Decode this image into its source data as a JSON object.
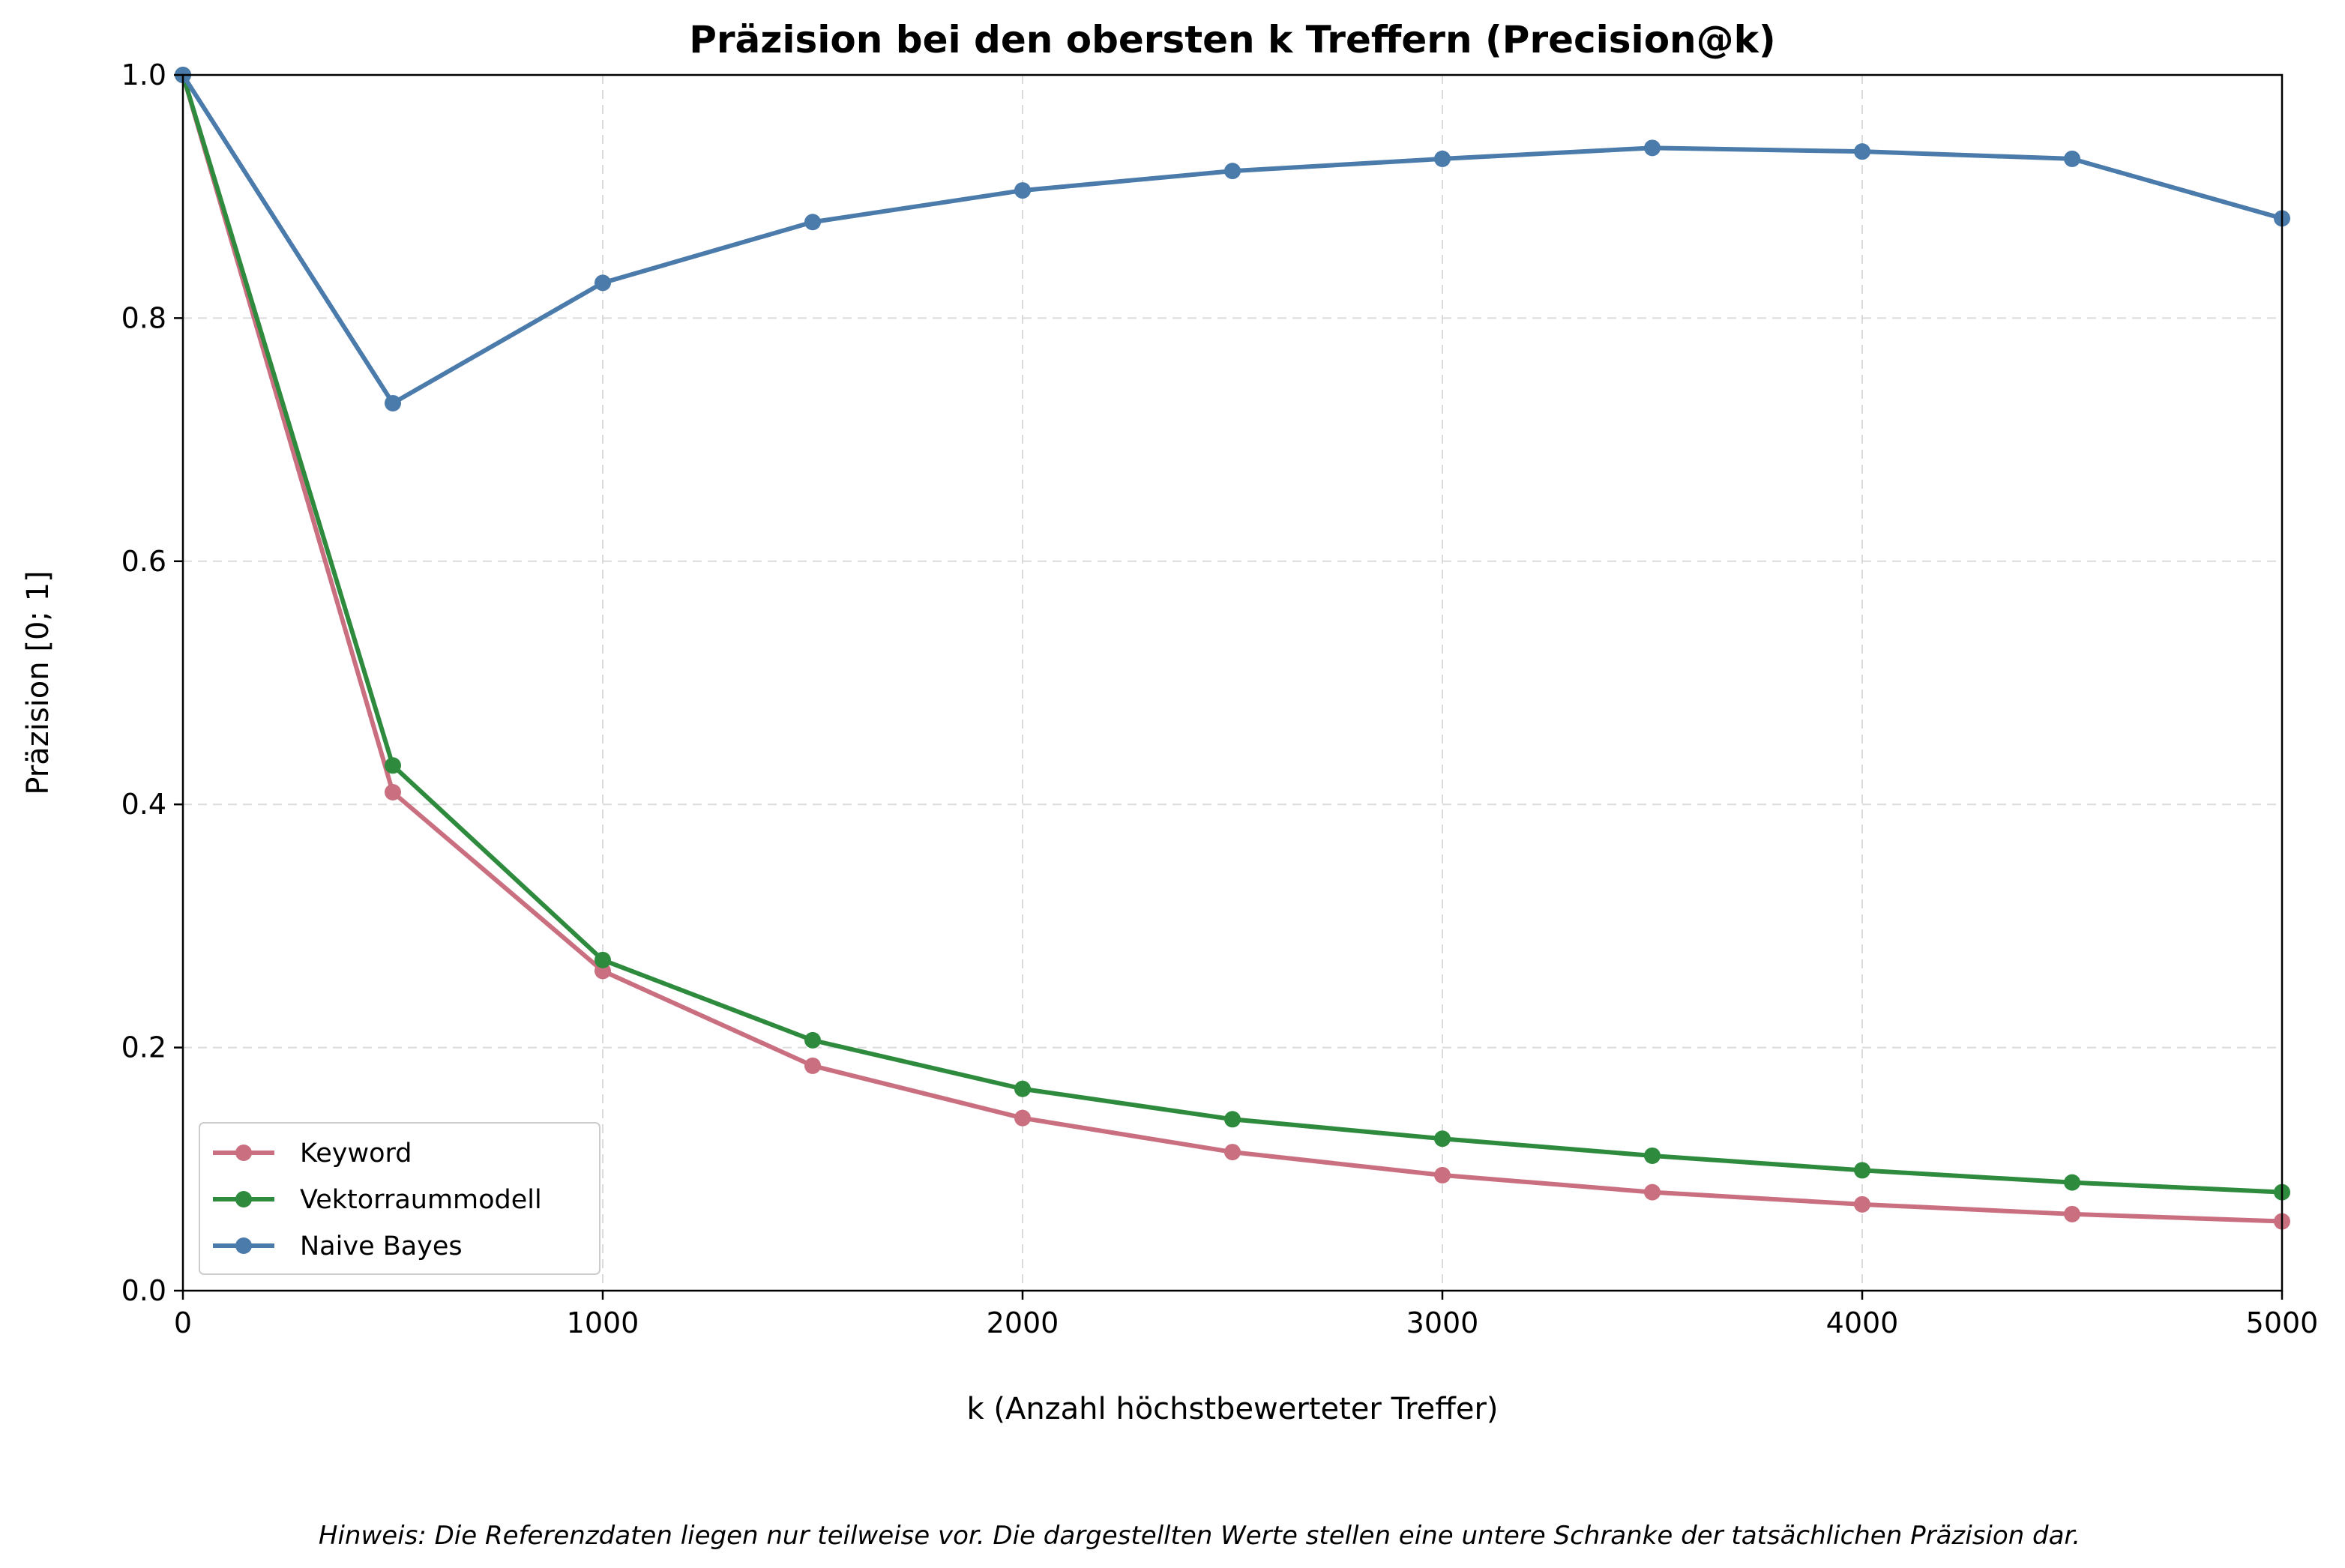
{
  "chart_data": {
    "type": "line",
    "title": "Präzision bei den obersten k Treffern (Precision@k)",
    "xlabel": "k (Anzahl höchstbewerteter Treffer)",
    "ylabel": "Präzision [0; 1]",
    "xlim": [
      0,
      5000
    ],
    "ylim": [
      0,
      1
    ],
    "xticks": [
      0,
      1000,
      2000,
      3000,
      4000,
      5000
    ],
    "xtick_labels": [
      "0",
      "1000",
      "2000",
      "3000",
      "4000",
      "5000"
    ],
    "yticks": [
      0,
      0.2,
      0.4,
      0.6,
      0.8,
      1.0
    ],
    "ytick_labels": [
      "0.0",
      "0.2",
      "0.4",
      "0.6",
      "0.8",
      "1.0"
    ],
    "grid": true,
    "legend_position": "lower-left",
    "x": [
      0,
      500,
      1000,
      1500,
      2000,
      2500,
      3000,
      3500,
      4000,
      4500,
      5000
    ],
    "series": [
      {
        "name": "Keyword",
        "color": "#c96f80",
        "values": [
          1.0,
          0.41,
          0.263,
          0.185,
          0.142,
          0.114,
          0.095,
          0.081,
          0.071,
          0.063,
          0.057
        ]
      },
      {
        "name": "Vektorraummodell",
        "color": "#2e8b3e",
        "values": [
          1.0,
          0.432,
          0.272,
          0.206,
          0.166,
          0.141,
          0.125,
          0.111,
          0.099,
          0.089,
          0.081
        ]
      },
      {
        "name": "Naive Bayes",
        "color": "#4a7bab",
        "values": [
          1.0,
          0.73,
          0.829,
          0.879,
          0.905,
          0.921,
          0.931,
          0.94,
          0.937,
          0.931,
          0.882
        ]
      }
    ],
    "note": "Hinweis: Die Referenzdaten liegen nur teilweise vor. Die dargestellten Werte stellen eine untere Schranke der tatsächlichen Präzision dar."
  }
}
